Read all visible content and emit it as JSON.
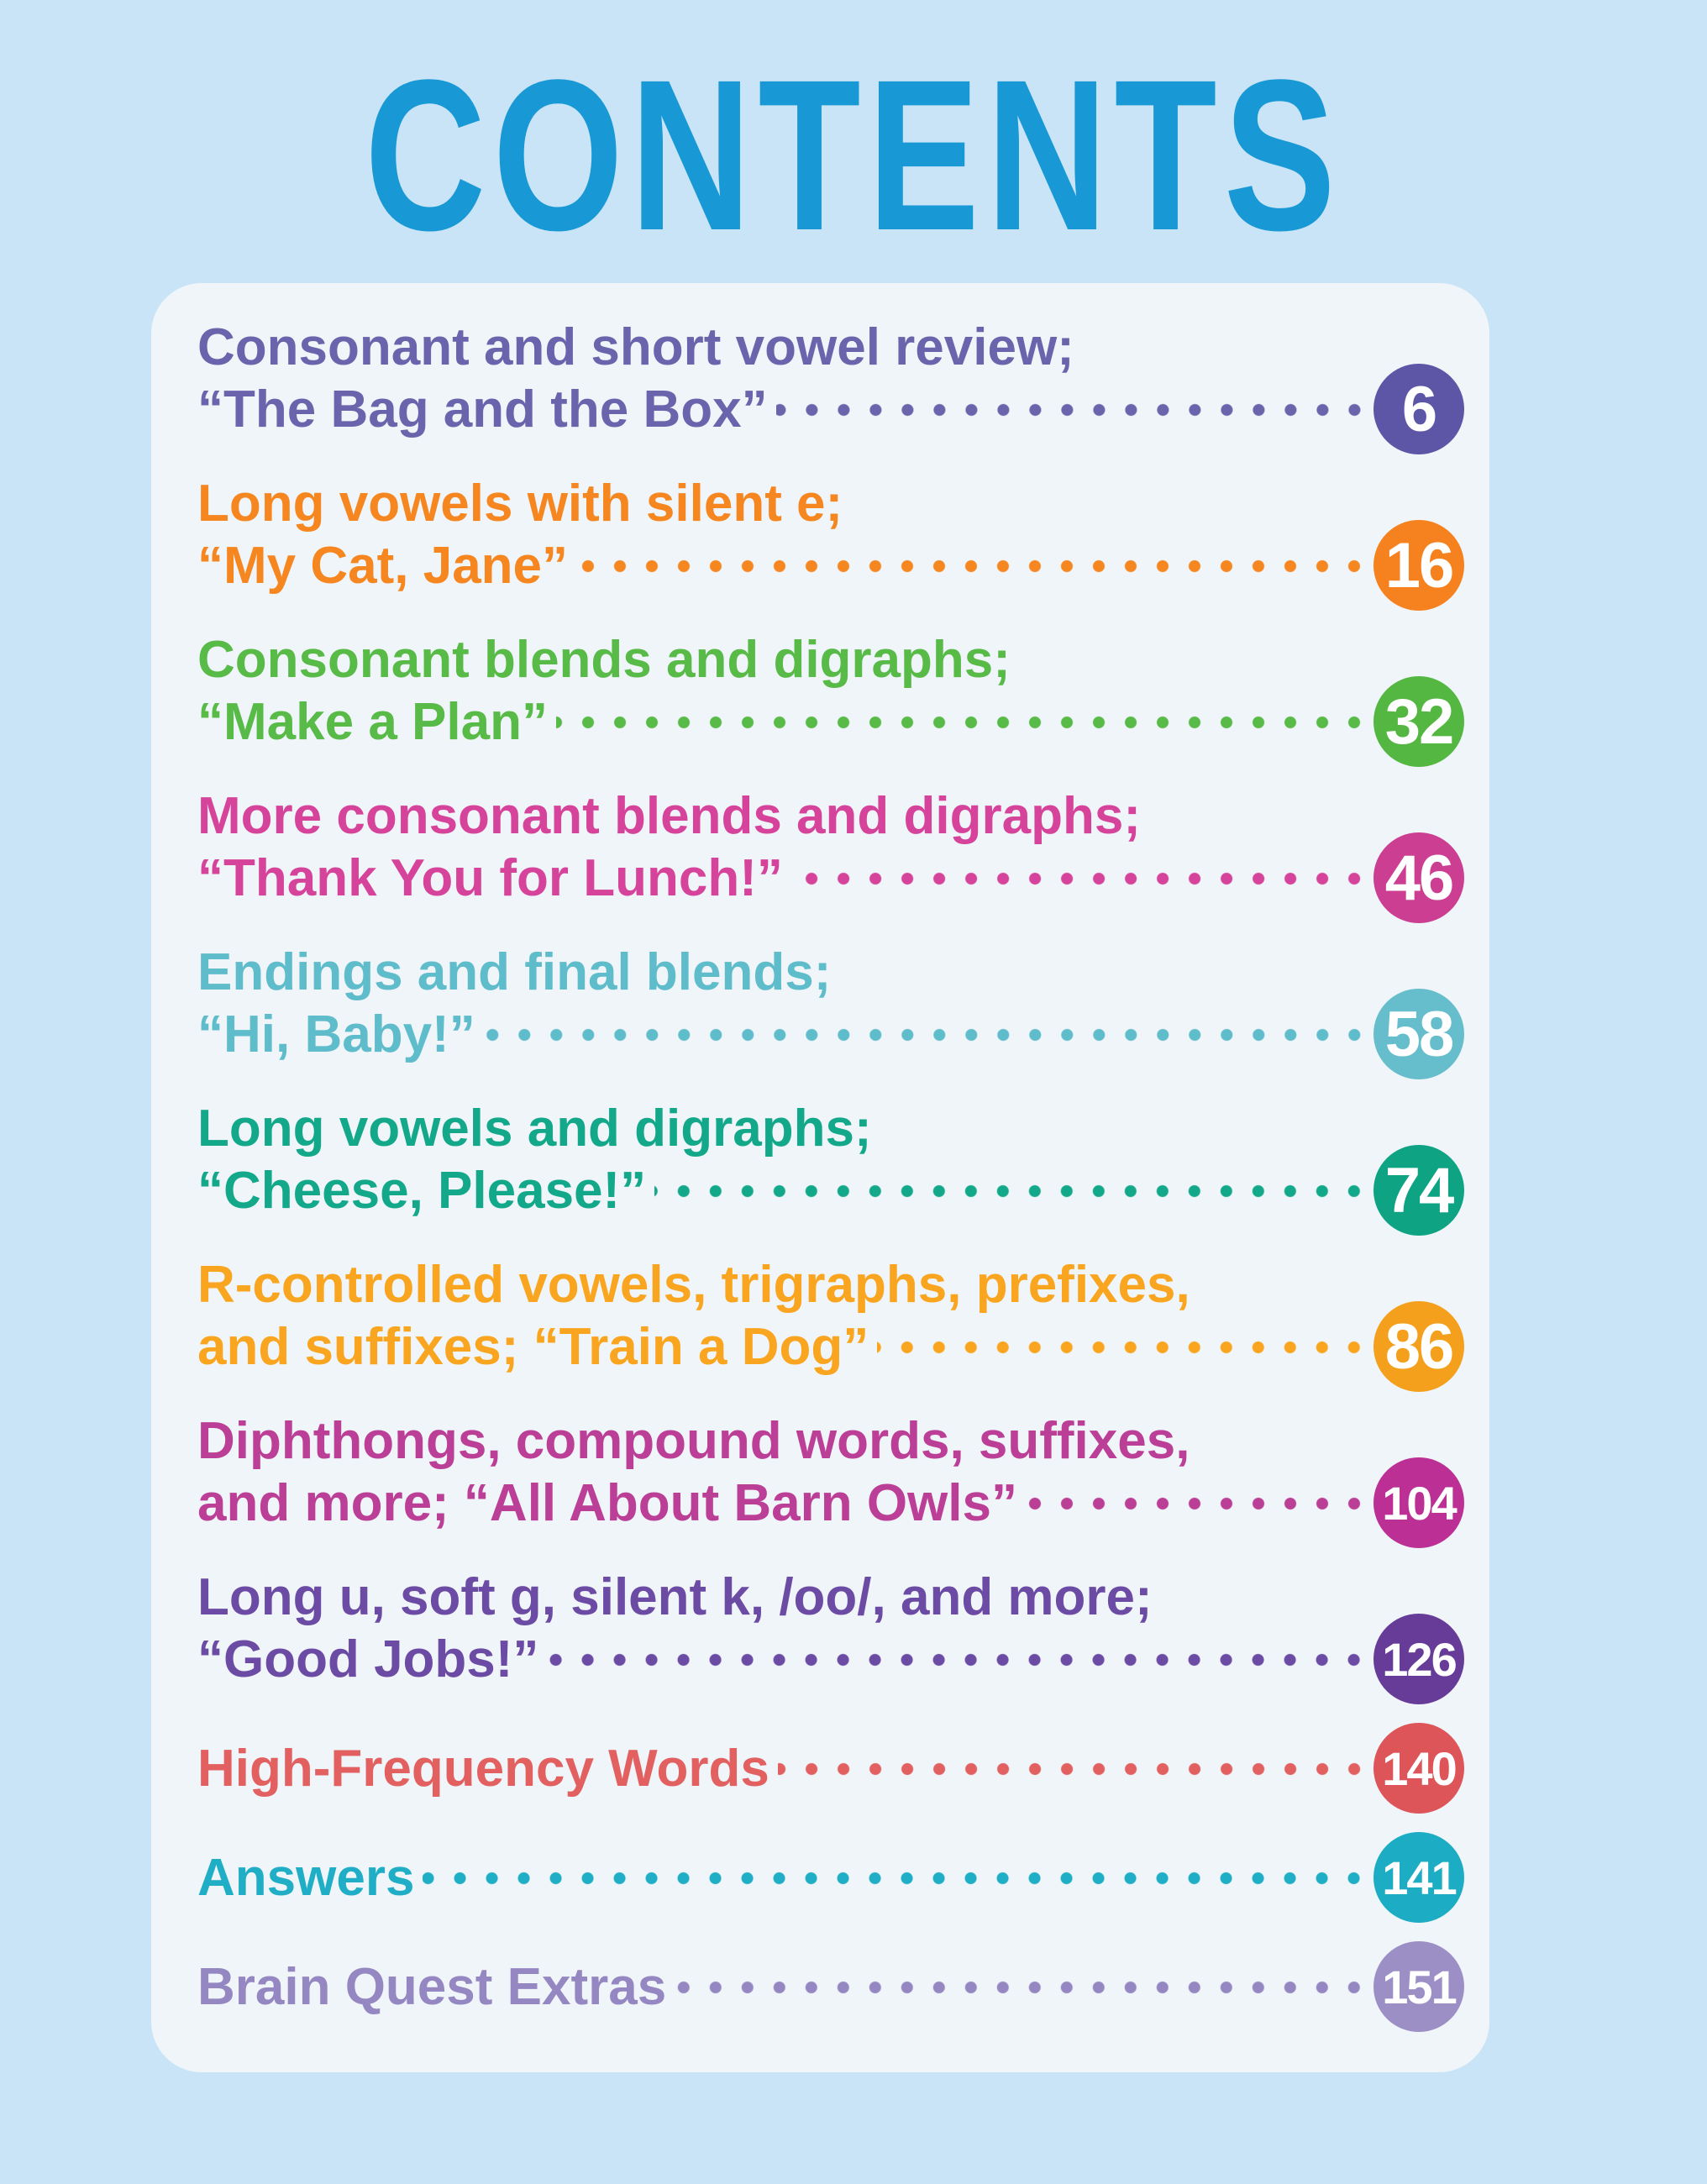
{
  "page": {
    "title": "CONTENTS",
    "background_color": "#C9E4F6",
    "card_color": "#EFF5F9",
    "title_color": "#1899D6"
  },
  "entries": [
    {
      "lines": [
        "Consonant and short vowel review;",
        "“The Bag and the Box”"
      ],
      "page": "6",
      "color": "#6B64AD",
      "circle_color": "#5D56A6"
    },
    {
      "lines": [
        "Long vowels with silent e;",
        "“My Cat, Jane”"
      ],
      "page": "16",
      "color": "#F6861F",
      "circle_color": "#F5821E"
    },
    {
      "lines": [
        "Consonant blends and digraphs;",
        "“Make a Plan”"
      ],
      "page": "32",
      "color": "#58BA47",
      "circle_color": "#54B741"
    },
    {
      "lines": [
        "More consonant blends and digraphs;",
        "“Thank You for Lunch!”"
      ],
      "page": "46",
      "color": "#D6439B",
      "circle_color": "#CC3E92"
    },
    {
      "lines": [
        "Endings and final blends;",
        "“Hi, Baby!”"
      ],
      "page": "58",
      "color": "#5FBCCB",
      "circle_color": "#66BECD"
    },
    {
      "lines": [
        "Long vowels and digraphs;",
        "“Cheese, Please!”"
      ],
      "page": "74",
      "color": "#13A88A",
      "circle_color": "#0EA383"
    },
    {
      "lines": [
        "R-controlled vowels, trigraphs, prefixes,",
        "and suffixes; “Train a Dog”"
      ],
      "page": "86",
      "color": "#F9A51F",
      "circle_color": "#F4A01C"
    },
    {
      "lines": [
        "Diphthongs, compound words, suffixes,",
        "and more; “All About Barn Owls”"
      ],
      "page": "104",
      "color": "#BB3E97",
      "circle_color": "#BC3095"
    },
    {
      "lines": [
        "Long u, soft g, silent k, /oo/, and more;",
        "“Good Jobs!”"
      ],
      "page": "126",
      "color": "#6C4BA5",
      "circle_color": "#673C99"
    },
    {
      "lines": [
        "High-Frequency Words"
      ],
      "page": "140",
      "color": "#E2605F",
      "circle_color": "#DD5558"
    },
    {
      "lines": [
        "Answers"
      ],
      "page": "141",
      "color": "#1FAEC5",
      "circle_color": "#1CACC4"
    },
    {
      "lines": [
        "Brain Quest Extras"
      ],
      "page": "151",
      "color": "#9587C2",
      "circle_color": "#9C8FC6"
    }
  ]
}
